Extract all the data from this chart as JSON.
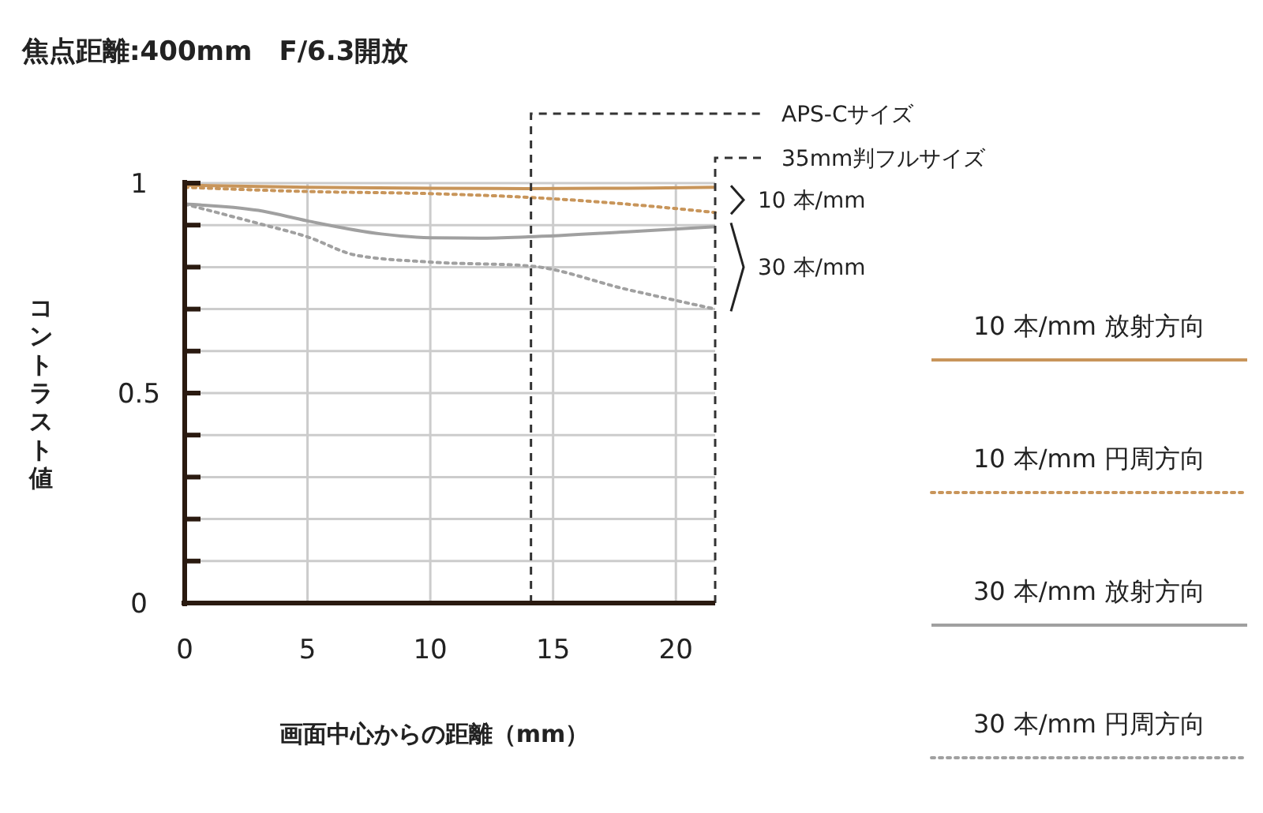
{
  "chart_data": {
    "type": "line",
    "title": "焦点距離:400mm　F/6.3開放",
    "xlabel": "画面中心からの距離（mm）",
    "ylabel": "コントラスト値",
    "xlim": [
      0,
      21.6
    ],
    "xticks": [
      0,
      5,
      10,
      15,
      20
    ],
    "ylim": [
      0,
      1
    ],
    "yticks": [
      0,
      {
        "value": 0.1,
        "label": null
      },
      {
        "value": 0.2,
        "label": null
      },
      {
        "value": 0.3,
        "label": null
      },
      {
        "value": 0.4,
        "label": null
      },
      0.5,
      {
        "value": 0.6,
        "label": null
      },
      {
        "value": 0.7,
        "label": null
      },
      {
        "value": 0.8,
        "label": null
      },
      {
        "value": 0.9,
        "label": null
      },
      1
    ],
    "grid": true,
    "legend": "right",
    "ref_lines": [
      {
        "axis": "x",
        "value": 14.1,
        "label": "APS-Cサイズ",
        "line_style": "dashed",
        "color": "#333333"
      },
      {
        "axis": "x",
        "value": 21.6,
        "label": "35mm判フルサイズ",
        "line_style": "dashed",
        "color": "#333333"
      }
    ],
    "annotations": [
      {
        "text": "10 本/mm",
        "x": 21.6,
        "y": 0.96
      },
      {
        "text": "30 本/mm",
        "x": 21.6,
        "y": 0.8
      }
    ],
    "series": [
      {
        "name": "10 本/mm 放射方向",
        "color": "#c8955a",
        "line_style": "solid",
        "x": [
          0,
          5,
          10,
          14,
          18,
          21.6
        ],
        "values": [
          0.995,
          0.99,
          0.988,
          0.987,
          0.988,
          0.99
        ]
      },
      {
        "name": "10 本/mm 円周方向",
        "color": "#c8955a",
        "line_style": "dotted",
        "x": [
          0,
          5,
          10,
          14,
          18,
          21.6
        ],
        "values": [
          0.99,
          0.98,
          0.975,
          0.966,
          0.95,
          0.93
        ]
      },
      {
        "name": "30 本/mm 放射方向",
        "color": "#a0a0a0",
        "line_style": "solid",
        "x": [
          0,
          3,
          5,
          8,
          10,
          12,
          14,
          18,
          21.6
        ],
        "values": [
          0.95,
          0.935,
          0.91,
          0.879,
          0.87,
          0.869,
          0.872,
          0.884,
          0.896
        ]
      },
      {
        "name": "30 本/mm 円周方向",
        "color": "#a0a0a0",
        "line_style": "dotted",
        "x": [
          0,
          3,
          5,
          7,
          10,
          14,
          18,
          21.6
        ],
        "values": [
          0.95,
          0.904,
          0.872,
          0.828,
          0.812,
          0.803,
          0.747,
          0.7
        ]
      }
    ]
  }
}
